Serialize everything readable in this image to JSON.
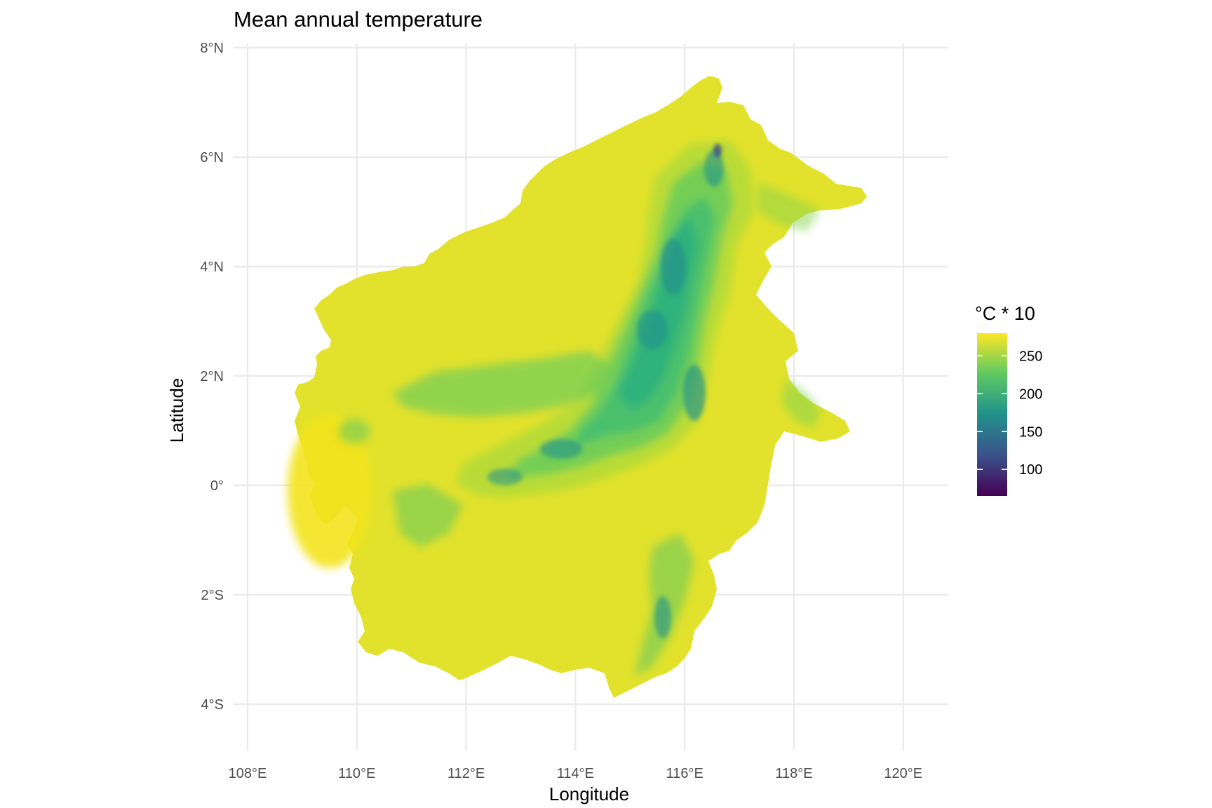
{
  "title": "Mean annual temperature",
  "x_axis": {
    "title": "Longitude",
    "range": [
      107.7,
      120.8
    ],
    "ticks": [
      {
        "value": 108,
        "label": "108°E"
      },
      {
        "value": 110,
        "label": "110°E"
      },
      {
        "value": 112,
        "label": "112°E"
      },
      {
        "value": 114,
        "label": "114°E"
      },
      {
        "value": 116,
        "label": "116°E"
      },
      {
        "value": 118,
        "label": "118°E"
      },
      {
        "value": 120,
        "label": "120°E"
      }
    ]
  },
  "y_axis": {
    "title": "Latitude",
    "range": [
      -4.9,
      8.1
    ],
    "ticks": [
      {
        "value": 8,
        "label": "8°N"
      },
      {
        "value": 6,
        "label": "6°N"
      },
      {
        "value": 4,
        "label": "4°N"
      },
      {
        "value": 2,
        "label": "2°N"
      },
      {
        "value": 0,
        "label": "0°"
      },
      {
        "value": -2,
        "label": "2°S"
      },
      {
        "value": -4,
        "label": "4°S"
      }
    ]
  },
  "legend": {
    "title": "°C * 10",
    "position": "right",
    "palette": "viridis",
    "colors": [
      "#440154",
      "#3b528b",
      "#21918c",
      "#5ec962",
      "#fde725"
    ],
    "range": [
      65,
      280
    ],
    "breaks": [
      {
        "value": 250,
        "label": "250"
      },
      {
        "value": 200,
        "label": "200"
      },
      {
        "value": 150,
        "label": "150"
      },
      {
        "value": 100,
        "label": "100"
      }
    ]
  },
  "map": {
    "region": "Borneo",
    "fill_colors": {
      "lowland": "#e2e22c",
      "lowland_edge": "#f1e51d",
      "highland": "#22a884",
      "high_peak": "#2a788e",
      "summit": "#3b528b"
    }
  }
}
